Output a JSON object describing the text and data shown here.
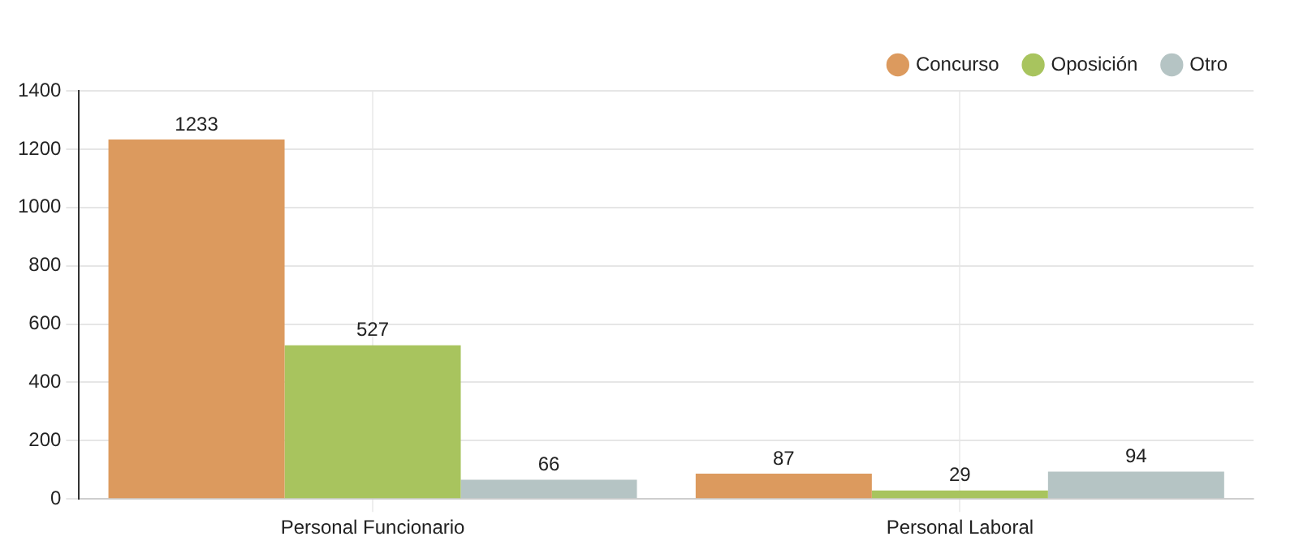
{
  "chart_data": {
    "type": "bar",
    "categories": [
      "Personal Funcionario",
      "Personal Laboral"
    ],
    "series": [
      {
        "name": "Concurso",
        "color": "#dc9a5e",
        "values": [
          1233,
          87
        ]
      },
      {
        "name": "Oposición",
        "color": "#a8c45e",
        "values": [
          527,
          29
        ]
      },
      {
        "name": "Otro",
        "color": "#b5c4c4",
        "values": [
          66,
          94
        ]
      }
    ],
    "ylim": [
      0,
      1400
    ],
    "yticks": [
      0,
      200,
      400,
      600,
      800,
      1000,
      1200,
      1400
    ],
    "grid": true,
    "legend": "top right",
    "data_labels": true
  }
}
